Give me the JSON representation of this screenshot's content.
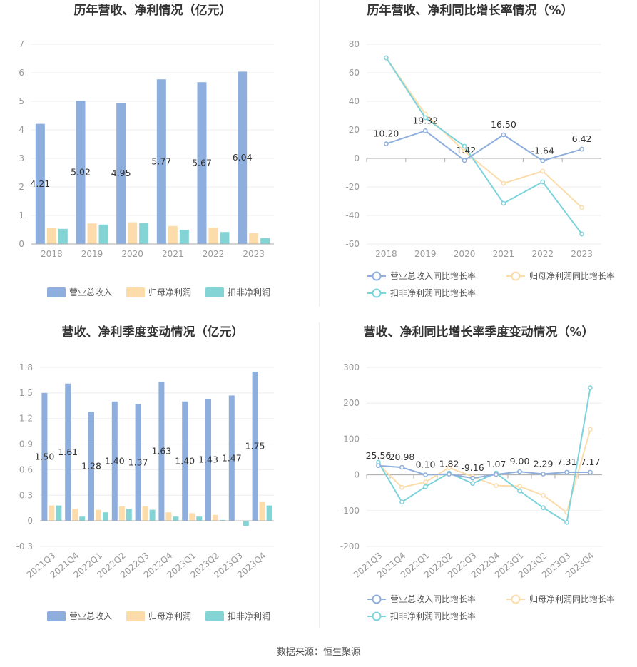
{
  "source_label": "数据来源：恒生聚源",
  "colors": {
    "revenue": "#8eaedd",
    "net": "#fcdcaa",
    "deducted": "#84d4d6",
    "deducted_line": "#7dd3dc"
  },
  "chart_data": [
    {
      "type": "bar",
      "title": "历年营收、净利情况（亿元）",
      "categories": [
        "2018",
        "2019",
        "2020",
        "2021",
        "2022",
        "2023"
      ],
      "ylim": [
        0,
        7
      ],
      "yticks": [
        "0",
        "1",
        "2",
        "3",
        "4",
        "5",
        "6",
        "7"
      ],
      "series": [
        {
          "name": "营业总收入",
          "values": [
            4.21,
            5.02,
            4.95,
            5.77,
            5.67,
            6.04
          ],
          "labels": [
            "4.21",
            "5.02",
            "4.95",
            "5.77",
            "5.67",
            "6.04"
          ]
        },
        {
          "name": "归母净利润",
          "values": [
            0.55,
            0.72,
            0.76,
            0.63,
            0.57,
            0.38
          ]
        },
        {
          "name": "扣非净利润",
          "values": [
            0.53,
            0.68,
            0.74,
            0.5,
            0.42,
            0.21
          ]
        }
      ],
      "legend": "bottom"
    },
    {
      "type": "line",
      "title": "历年营收、净利同比增长率情况（%）",
      "categories": [
        "2018",
        "2019",
        "2020",
        "2021",
        "2022",
        "2023"
      ],
      "ylim": [
        -60,
        80
      ],
      "yticks": [
        "-60",
        "-40",
        "-20",
        "0",
        "20",
        "40",
        "60",
        "80"
      ],
      "series": [
        {
          "name": "营业总收入同比增长率",
          "values": [
            10.2,
            19.32,
            -1.42,
            16.5,
            -1.64,
            6.42
          ],
          "labels": [
            "10.20",
            "19.32",
            "-1.42",
            "16.50",
            "-1.64",
            "6.42"
          ]
        },
        {
          "name": "归母净利润同比增长率",
          "values": [
            70.5,
            31.0,
            5.0,
            -17.5,
            -9.0,
            -34.5
          ]
        },
        {
          "name": "扣非净利润同比增长率",
          "values": [
            70.5,
            28.5,
            8.5,
            -31.5,
            -16.5,
            -53.0
          ]
        }
      ],
      "legend": "bottom"
    },
    {
      "type": "bar",
      "title": "营收、净利季度变动情况（亿元）",
      "categories": [
        "2021Q3",
        "2021Q4",
        "2022Q1",
        "2022Q2",
        "2022Q3",
        "2022Q4",
        "2023Q1",
        "2023Q2",
        "2023Q3",
        "2023Q4"
      ],
      "ylim": [
        -0.3,
        1.8
      ],
      "yticks": [
        "-0.3",
        "0",
        "0.3",
        "0.6",
        "0.9",
        "1.2",
        "1.5",
        "1.8"
      ],
      "series": [
        {
          "name": "营业总收入",
          "values": [
            1.5,
            1.61,
            1.28,
            1.4,
            1.37,
            1.63,
            1.4,
            1.43,
            1.47,
            1.75
          ],
          "labels": [
            "1.50",
            "1.61",
            "1.28",
            "1.40",
            "1.37",
            "1.63",
            "1.40",
            "1.43",
            "1.47",
            "1.75"
          ]
        },
        {
          "name": "归母净利润",
          "values": [
            0.18,
            0.14,
            0.13,
            0.17,
            0.17,
            0.1,
            0.09,
            0.07,
            0.0,
            0.22
          ]
        },
        {
          "name": "扣非净利润",
          "values": [
            0.18,
            0.05,
            0.1,
            0.14,
            0.13,
            0.05,
            0.05,
            0.01,
            -0.06,
            0.18
          ]
        }
      ],
      "legend": "bottom"
    },
    {
      "type": "line",
      "title": "营收、净利同比增长率季度变动情况（%）",
      "categories": [
        "2021Q3",
        "2021Q4",
        "2022Q1",
        "2022Q2",
        "2022Q3",
        "2022Q4",
        "2023Q1",
        "2023Q2",
        "2023Q3",
        "2023Q4"
      ],
      "ylim": [
        -200,
        300
      ],
      "yticks": [
        "-200",
        "-100",
        "0",
        "100",
        "200",
        "300"
      ],
      "series": [
        {
          "name": "营业总收入同比增长率",
          "values": [
            25.56,
            20.98,
            0.1,
            1.82,
            -9.16,
            1.07,
            9.0,
            2.29,
            7.31,
            7.17
          ],
          "labels": [
            "25.56",
            "20.98",
            "0.10",
            "1.82",
            "-9.16",
            "1.07",
            "9.00",
            "2.29",
            "7.31",
            "7.17"
          ]
        },
        {
          "name": "归母净利润同比增长率",
          "values": [
            30,
            -35,
            -20,
            20,
            -5,
            -30,
            -32,
            -57,
            -105,
            127
          ]
        },
        {
          "name": "扣非净利润同比增长率",
          "values": [
            35,
            -76,
            -33,
            5,
            -24,
            5,
            -45,
            -92,
            -133,
            243
          ]
        }
      ],
      "legend": "bottom"
    }
  ]
}
